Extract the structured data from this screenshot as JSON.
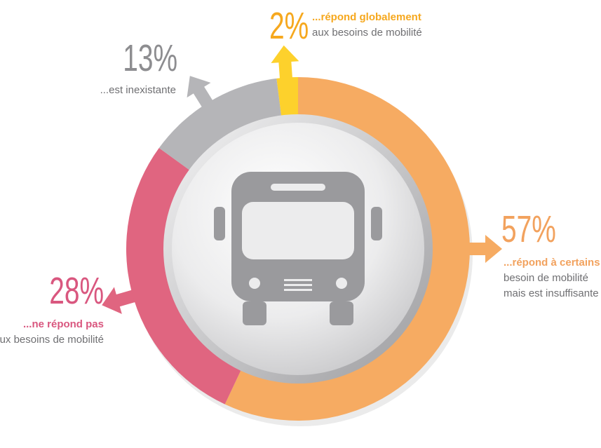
{
  "chart_data": {
    "type": "donut",
    "values": [
      2,
      57,
      28,
      13
    ],
    "value_labels": [
      "2%",
      "57%",
      "28%",
      "13%"
    ],
    "labels": [
      {
        "bold": "...répond globalement",
        "text": "aux besoins de mobilité"
      },
      {
        "bold": "...répond à certains",
        "text": "besoin de mobilité mais est insuffisante"
      },
      {
        "bold": "...ne répond pas",
        "text": "aux besoins de mobilité"
      },
      {
        "text": "...est inexistante"
      }
    ],
    "colors": [
      "#fdd12c",
      "#f6ab62",
      "#e06580",
      "#b5b5b8"
    ],
    "label_colors": [
      "#f6a81e",
      "#f2a25e",
      "#d9577f",
      "#8d8d90"
    ]
  }
}
